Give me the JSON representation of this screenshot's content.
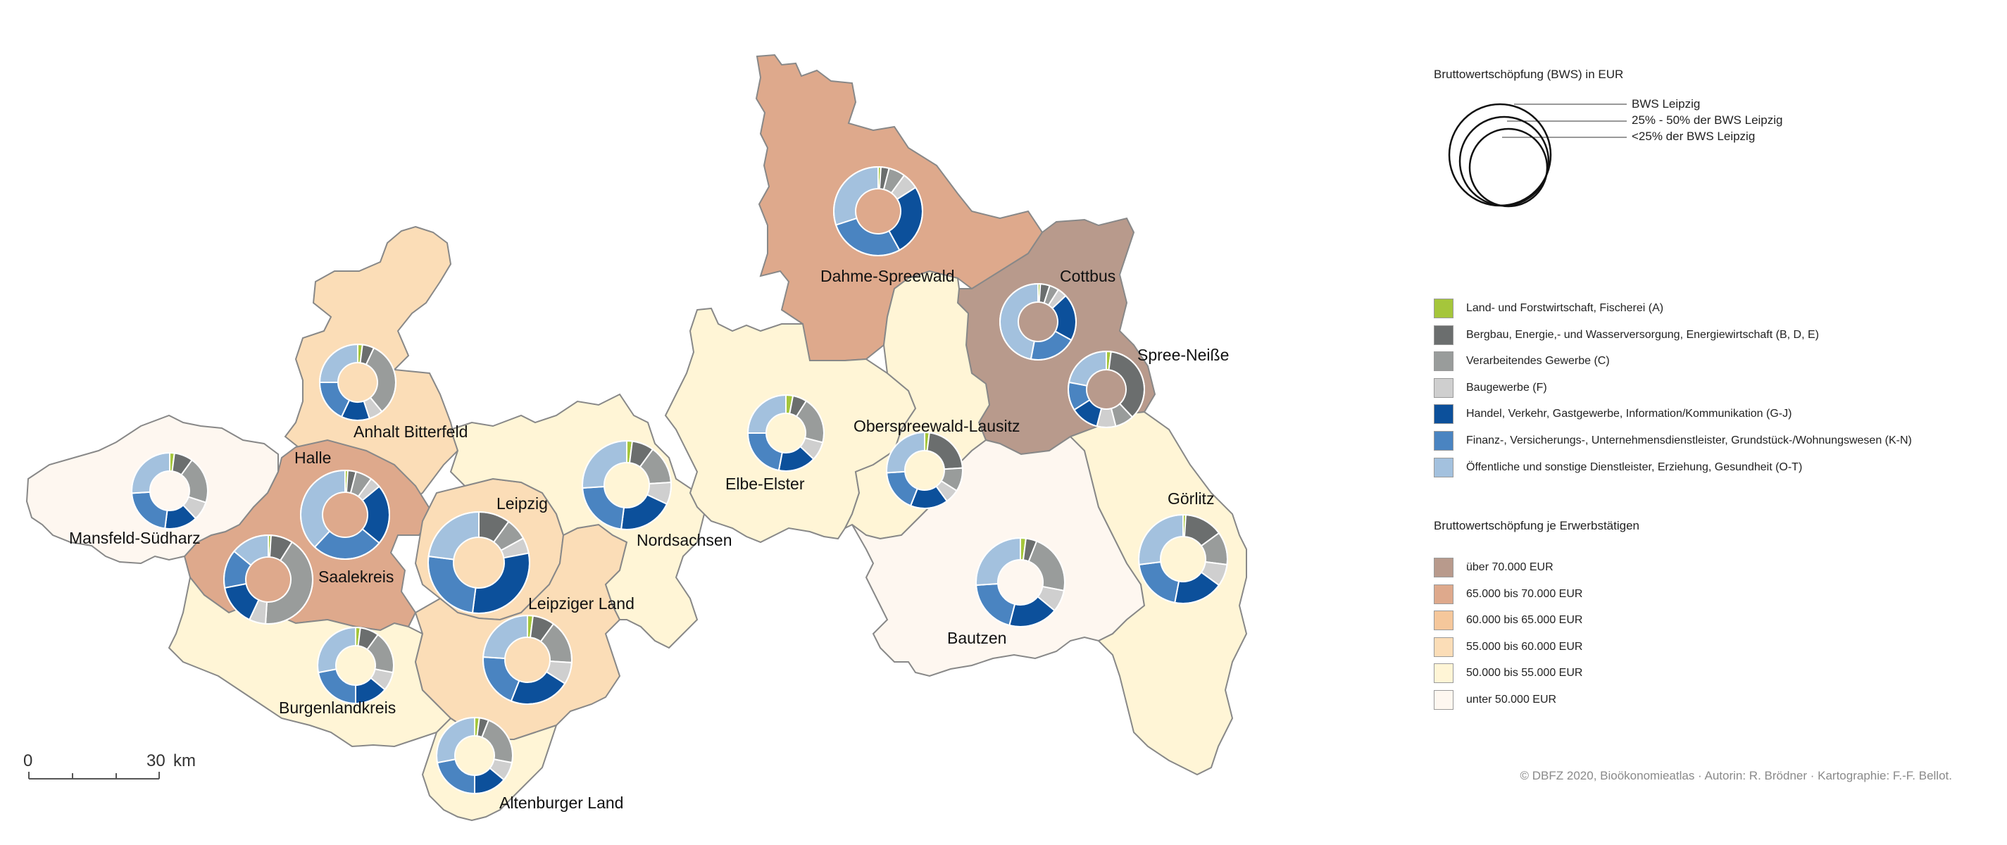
{
  "title": "Bruttowertschöpfung (BWS) in EUR",
  "size_legend": {
    "items": [
      "BWS Leipzig",
      "25% - 50% der BWS Leipzig",
      "<25% der BWS Leipzig"
    ]
  },
  "sectors": [
    {
      "id": "A",
      "label": "Land- und Forstwirtschaft, Fischerei (A)",
      "color": "#a5c63b"
    },
    {
      "id": "BDE",
      "label": "Bergbau, Energie,- und Wasserversorgung, Energiewirtschaft (B, D, E)",
      "color": "#6b6e6e"
    },
    {
      "id": "C",
      "label": "Verarbeitendes Gewerbe (C)",
      "color": "#999c9b"
    },
    {
      "id": "F",
      "label": "Baugewerbe (F)",
      "color": "#cfcfcf"
    },
    {
      "id": "GJ",
      "label": "Handel, Verkehr, Gastgewerbe, Information/Kommunikation (G-J)",
      "color": "#0c509b"
    },
    {
      "id": "KN",
      "label": "Finanz-, Versicherungs-, Unternehmensdienstleister, Grundstück-/Wohnungswesen (K-N)",
      "color": "#4a84c1"
    },
    {
      "id": "OT",
      "label": "Öffentliche und sonstige Dienstleister, Erziehung, Gesundheit (O-T)",
      "color": "#a3c1de"
    }
  ],
  "productivity_legend": {
    "title": "Bruttowertschöpfung je Erwerbstätigen",
    "classes": [
      {
        "label": "über 70.000 EUR",
        "color": "#b89a8c"
      },
      {
        "label": "65.000 bis 70.000 EUR",
        "color": "#dea98c"
      },
      {
        "label": "60.000 bis 65.000 EUR",
        "color": "#f5c79b"
      },
      {
        "label": "55.000 bis 60.000 EUR",
        "color": "#fbddb7"
      },
      {
        "label": "50.000 bis 55.000 EUR",
        "color": "#fff5d6"
      },
      {
        "label": "unter 50.000 EUR",
        "color": "#fef7f0"
      }
    ]
  },
  "regions": [
    {
      "name": "Dahme-Spreewald",
      "class": 1,
      "shares": {
        "A": 1,
        "BDE": 3,
        "C": 6,
        "F": 6,
        "GJ": 26,
        "KN": 28,
        "OT": 30
      },
      "size": "25-50"
    },
    {
      "name": "Cottbus",
      "class": 0,
      "shares": {
        "A": 1,
        "BDE": 4,
        "C": 4,
        "F": 4,
        "GJ": 20,
        "KN": 20,
        "OT": 47
      },
      "size": "lt25"
    },
    {
      "name": "Spree-Neiße",
      "class": 0,
      "shares": {
        "A": 2,
        "BDE": 36,
        "C": 8,
        "F": 8,
        "GJ": 12,
        "KN": 12,
        "OT": 22
      },
      "size": "lt25"
    },
    {
      "name": "Anhalt Bitterfeld",
      "class": 3,
      "shares": {
        "A": 2,
        "BDE": 5,
        "C": 32,
        "F": 6,
        "GJ": 12,
        "KN": 18,
        "OT": 25
      },
      "size": "lt25"
    },
    {
      "name": "Halle",
      "class": 1,
      "shares": {
        "A": 1,
        "BDE": 3,
        "C": 6,
        "F": 4,
        "GJ": 22,
        "KN": 26,
        "OT": 38
      },
      "size": "25-50"
    },
    {
      "name": "Saalekreis",
      "class": 1,
      "shares": {
        "A": 1,
        "BDE": 8,
        "C": 42,
        "F": 6,
        "GJ": 15,
        "KN": 14,
        "OT": 14
      },
      "size": "25-50"
    },
    {
      "name": "Mansfeld-Südharz",
      "class": 5,
      "shares": {
        "A": 2,
        "BDE": 8,
        "C": 20,
        "F": 8,
        "GJ": 14,
        "KN": 22,
        "OT": 26
      },
      "size": "lt25"
    },
    {
      "name": "Leipzig",
      "class": 3,
      "shares": {
        "A": 0,
        "BDE": 10,
        "C": 7,
        "F": 5,
        "GJ": 30,
        "KN": 25,
        "OT": 23
      },
      "size": "full"
    },
    {
      "name": "Nordsachsen",
      "class": 4,
      "shares": {
        "A": 2,
        "BDE": 8,
        "C": 14,
        "F": 8,
        "GJ": 20,
        "KN": 22,
        "OT": 26
      },
      "size": "25-50"
    },
    {
      "name": "Leipziger Land",
      "class": 3,
      "shares": {
        "A": 2,
        "BDE": 8,
        "C": 16,
        "F": 8,
        "GJ": 22,
        "KN": 20,
        "OT": 24
      },
      "size": "25-50"
    },
    {
      "name": "Burgenlandkreis",
      "class": 4,
      "shares": {
        "A": 2,
        "BDE": 8,
        "C": 18,
        "F": 8,
        "GJ": 14,
        "KN": 22,
        "OT": 28
      },
      "size": "lt25"
    },
    {
      "name": "Altenburger Land",
      "class": 4,
      "shares": {
        "A": 2,
        "BDE": 4,
        "C": 22,
        "F": 8,
        "GJ": 14,
        "KN": 22,
        "OT": 28
      },
      "size": "lt25"
    },
    {
      "name": "Elbe-Elster",
      "class": 4,
      "shares": {
        "A": 3,
        "BDE": 6,
        "C": 20,
        "F": 8,
        "GJ": 16,
        "KN": 22,
        "OT": 25
      },
      "size": "lt25"
    },
    {
      "name": "Oberspreewald-Lausitz",
      "class": 4,
      "shares": {
        "A": 2,
        "BDE": 22,
        "C": 10,
        "F": 6,
        "GJ": 16,
        "KN": 18,
        "OT": 26
      },
      "size": "lt25"
    },
    {
      "name": "Bautzen",
      "class": 5,
      "shares": {
        "A": 2,
        "BDE": 4,
        "C": 22,
        "F": 8,
        "GJ": 18,
        "KN": 20,
        "OT": 26
      },
      "size": "25-50"
    },
    {
      "name": "Görlitz",
      "class": 4,
      "shares": {
        "A": 1,
        "BDE": 14,
        "C": 12,
        "F": 8,
        "GJ": 18,
        "KN": 20,
        "OT": 27
      },
      "size": "25-50"
    }
  ],
  "scalebar": {
    "start": "0",
    "end": "30",
    "unit": "km"
  },
  "credit": "© DBFZ 2020, Bioökonomieatlas · Autorin: R. Brödner · Kartographie: F.-F. Bellot."
}
